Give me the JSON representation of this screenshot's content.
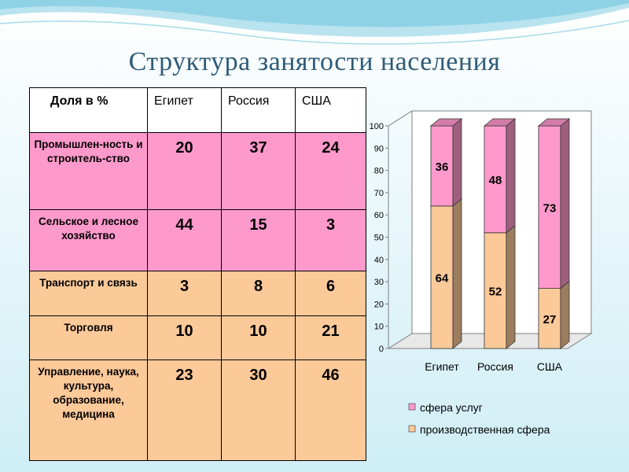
{
  "title": "Структура занятости населения",
  "table": {
    "headers": [
      "Доля в %",
      "Египет",
      "Россия",
      "США"
    ],
    "rows": [
      {
        "label": "Промышлен-ность и строитель-ство",
        "values": [
          "20",
          "37",
          "24"
        ],
        "color": "#fe99cc"
      },
      {
        "label": "Сельское и лесное хозяйство",
        "values": [
          "44",
          "15",
          "3"
        ],
        "color": "#fe99cc"
      },
      {
        "label": "Транспорт и связь",
        "values": [
          "3",
          "8",
          "6"
        ],
        "color": "#fcc999"
      },
      {
        "label": "Торговля",
        "values": [
          "10",
          "10",
          "21"
        ],
        "color": "#fcc999"
      },
      {
        "label": "Управление, наука, культура, образование, медицина",
        "values": [
          "23",
          "30",
          "46"
        ],
        "color": "#fcc999"
      }
    ]
  },
  "chart_data": {
    "type": "bar",
    "stacked": true,
    "categories": [
      "Египет",
      "Россия",
      "США"
    ],
    "series": [
      {
        "name": "производственная сфера",
        "values": [
          64,
          52,
          27
        ],
        "color": "#fcc999"
      },
      {
        "name": "сфера услуг",
        "values": [
          36,
          48,
          73
        ],
        "color": "#ff99cc"
      }
    ],
    "ylim": [
      0,
      100
    ],
    "yticks": [
      0,
      10,
      20,
      30,
      40,
      50,
      60,
      70,
      80,
      90,
      100
    ],
    "legend": "bottom",
    "legend_order": [
      "сфера услуг",
      "производственная сфера"
    ]
  }
}
